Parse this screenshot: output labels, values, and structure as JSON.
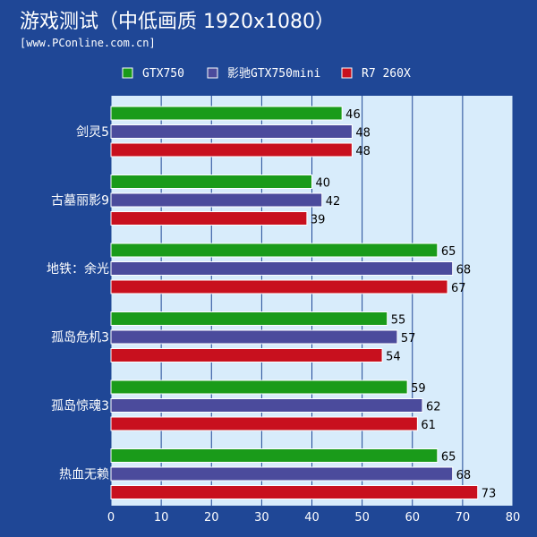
{
  "header": {
    "title": "游戏测试（中低画质 1920x1080）",
    "source": "[www.PConline.com.cn]"
  },
  "colors": {
    "background": "#1f4796",
    "plot_area": "#d8ecfb",
    "grid": "#1f4796"
  },
  "chart_data": {
    "type": "bar",
    "orientation": "horizontal",
    "title": "游戏测试（中低画质 1920x1080）",
    "categories": [
      "剑灵5",
      "古墓丽影9",
      "地铁：余光",
      "孤岛危机3",
      "孤岛惊魂3",
      "热血无赖"
    ],
    "series": [
      {
        "name": "GTX750",
        "color": "#1a9b1a",
        "values": [
          46,
          40,
          65,
          55,
          59,
          65
        ]
      },
      {
        "name": "影驰GTX750mini",
        "color": "#4b4b9c",
        "values": [
          48,
          42,
          68,
          57,
          62,
          68
        ]
      },
      {
        "name": "R7 260X",
        "color": "#c8101e",
        "values": [
          48,
          39,
          67,
          54,
          61,
          73
        ]
      }
    ],
    "xlim": [
      0,
      80
    ],
    "xticks": [
      0,
      10,
      20,
      30,
      40,
      50,
      60,
      70,
      80
    ],
    "grid": true,
    "legend_position": "top"
  }
}
